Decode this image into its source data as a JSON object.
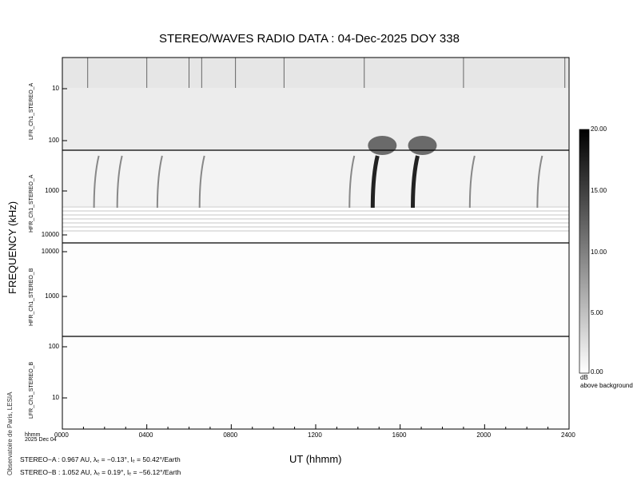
{
  "chart_data": {
    "type": "heatmap",
    "title": "STEREO/WAVES  RADIO  DATA : 04-Dec-2025  DOY 338",
    "xlabel": "UT (hhmm)",
    "ylabel": "FREQUENCY (kHz)",
    "x_ticks": [
      "0000",
      "0400",
      "0800",
      "1200",
      "1600",
      "2000",
      "2400"
    ],
    "xlim_hours": [
      0,
      24
    ],
    "x_corner_label": "hhmm",
    "date_label": "2025 Dec 04",
    "panels": [
      {
        "name": "LFR_Ch1_STEREO_A",
        "scale": "log",
        "ticks": [
          "10",
          "100"
        ]
      },
      {
        "name": "HFR_Ch1_STEREO_A",
        "scale": "log",
        "ticks": [
          "1000",
          "10000"
        ]
      },
      {
        "name": "HFR_Ch1_STEREO_B",
        "scale": "log",
        "ticks": [
          "10000",
          "1000"
        ]
      },
      {
        "name": "LFR_Ch1_STEREO_B",
        "scale": "log",
        "ticks": [
          "100",
          "10"
        ]
      }
    ],
    "colorbar": {
      "ticks": [
        "20.00",
        "15.00",
        "10.00",
        "5.00",
        "0.00"
      ],
      "range": [
        0,
        20
      ],
      "unit": "dB",
      "unit_label": "above background"
    },
    "bursts_hours": [
      1.5,
      2.6,
      4.5,
      6.5,
      13.6,
      14.7,
      16.6,
      19.3,
      22.5
    ],
    "strong_bursts_hours": [
      14.7,
      16.6
    ],
    "credit": "Observatoire de Paris, LESIA",
    "ephemeris": [
      "STEREO−A : 0.967 AU, λₑ = −0.13°, lₑ = 50.42°/Earth",
      "STEREO−B : 1.052 AU, λₑ = 0.19°, lₑ = −56.12°/Earth"
    ]
  }
}
